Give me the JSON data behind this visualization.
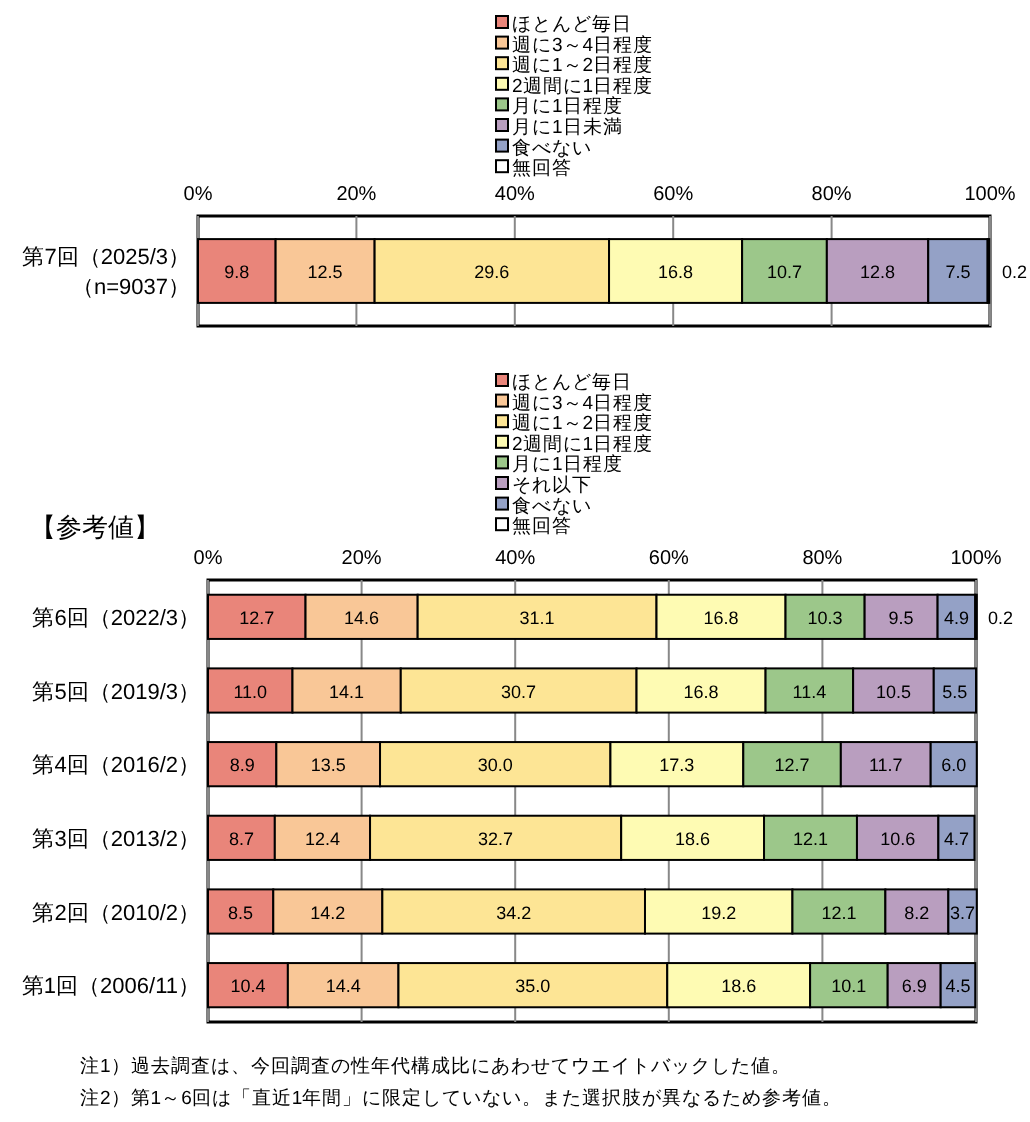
{
  "chart_data": [
    {
      "type": "bar",
      "orientation": "horizontal",
      "stacked": true,
      "legend": "top",
      "grid": "x",
      "categories": [
        "第7回（2025/3）（n=9037）"
      ],
      "xlim": [
        0,
        100
      ],
      "xticks": [
        {
          "value": 0,
          "label": "0%"
        },
        {
          "value": 20,
          "label": "20%"
        },
        {
          "value": 40,
          "label": "40%"
        },
        {
          "value": 60,
          "label": "60%"
        },
        {
          "value": 80,
          "label": "80%"
        },
        {
          "value": 100,
          "label": "100%"
        }
      ],
      "series": [
        {
          "name": "ほとんど毎日",
          "color": "#e9857a",
          "values": [
            9.8
          ],
          "value_labels": [
            "9.8"
          ]
        },
        {
          "name": "週に3～4日程度",
          "color": "#f9c797",
          "values": [
            12.5
          ],
          "value_labels": [
            "12.5"
          ]
        },
        {
          "name": "週に1～2日程度",
          "color": "#fde595",
          "values": [
            29.6
          ],
          "value_labels": [
            "29.6"
          ]
        },
        {
          "name": "2週間に1日程度",
          "color": "#fefbb3",
          "values": [
            16.8
          ],
          "value_labels": [
            "16.8"
          ]
        },
        {
          "name": "月に1日程度",
          "color": "#9cc78a",
          "values": [
            10.7
          ],
          "value_labels": [
            "10.7"
          ]
        },
        {
          "name": "月に1日未満",
          "color": "#b99ebf",
          "values": [
            12.8
          ],
          "value_labels": [
            "12.8"
          ]
        },
        {
          "name": "食べない",
          "color": "#94a1c6",
          "values": [
            7.5
          ],
          "value_labels": [
            "7.5"
          ]
        },
        {
          "name": "無回答",
          "color": "#ffffff",
          "values": [
            0.2
          ],
          "value_labels": [
            "0.2"
          ]
        }
      ]
    },
    {
      "type": "bar",
      "orientation": "horizontal",
      "stacked": true,
      "legend": "top",
      "grid": "x",
      "title": "【参考値】",
      "categories": [
        "第6回（2022/3）",
        "第5回（2019/3）",
        "第4回（2016/2）",
        "第3回（2013/2）",
        "第2回（2010/2）",
        "第1回（2006/11）"
      ],
      "xlim": [
        0,
        100
      ],
      "xticks": [
        {
          "value": 0,
          "label": "0%"
        },
        {
          "value": 20,
          "label": "20%"
        },
        {
          "value": 40,
          "label": "40%"
        },
        {
          "value": 60,
          "label": "60%"
        },
        {
          "value": 80,
          "label": "80%"
        },
        {
          "value": 100,
          "label": "100%"
        }
      ],
      "series": [
        {
          "name": "ほとんど毎日",
          "color": "#e9857a",
          "values": [
            12.7,
            11.0,
            8.9,
            8.7,
            8.5,
            10.4
          ],
          "value_labels": [
            "12.7",
            "11.0",
            "8.9",
            "8.7",
            "8.5",
            "10.4"
          ]
        },
        {
          "name": "週に3～4日程度",
          "color": "#f9c797",
          "values": [
            14.6,
            14.1,
            13.5,
            12.4,
            14.2,
            14.4
          ],
          "value_labels": [
            "14.6",
            "14.1",
            "13.5",
            "12.4",
            "14.2",
            "14.4"
          ]
        },
        {
          "name": "週に1～2日程度",
          "color": "#fde595",
          "values": [
            31.1,
            30.7,
            30.0,
            32.7,
            34.2,
            35.0
          ],
          "value_labels": [
            "31.1",
            "30.7",
            "30.0",
            "32.7",
            "34.2",
            "35.0"
          ]
        },
        {
          "name": "2週間に1日程度",
          "color": "#fefbb3",
          "values": [
            16.8,
            16.8,
            17.3,
            18.6,
            19.2,
            18.6
          ],
          "value_labels": [
            "16.8",
            "16.8",
            "17.3",
            "18.6",
            "19.2",
            "18.6"
          ]
        },
        {
          "name": "月に1日程度",
          "color": "#9cc78a",
          "values": [
            10.3,
            11.4,
            12.7,
            12.1,
            12.1,
            10.1
          ],
          "value_labels": [
            "10.3",
            "11.4",
            "12.7",
            "12.1",
            "12.1",
            "10.1"
          ]
        },
        {
          "name": "それ以下",
          "color": "#b99ebf",
          "values": [
            9.5,
            10.5,
            11.7,
            10.6,
            8.2,
            6.9
          ],
          "value_labels": [
            "9.5",
            "10.5",
            "11.7",
            "10.6",
            "8.2",
            "6.9"
          ]
        },
        {
          "name": "食べない",
          "color": "#94a1c6",
          "values": [
            4.9,
            5.5,
            6.0,
            4.7,
            3.7,
            4.5
          ],
          "value_labels": [
            "4.9",
            "5.5",
            "6.0",
            "4.7",
            "3.7",
            "4.5"
          ]
        },
        {
          "name": "無回答",
          "color": "#ffffff",
          "values": [
            0.2,
            null,
            null,
            null,
            null,
            null
          ],
          "value_labels": [
            "0.2",
            null,
            null,
            null,
            null,
            null
          ]
        }
      ],
      "annotations": [
        "注1）過去調査は、今回調査の性年代構成比にあわせてウエイトバックした値。",
        "注2）第1～6回は「直近1年間」に限定していない。また選択肢が異なるため参考値。"
      ]
    }
  ]
}
